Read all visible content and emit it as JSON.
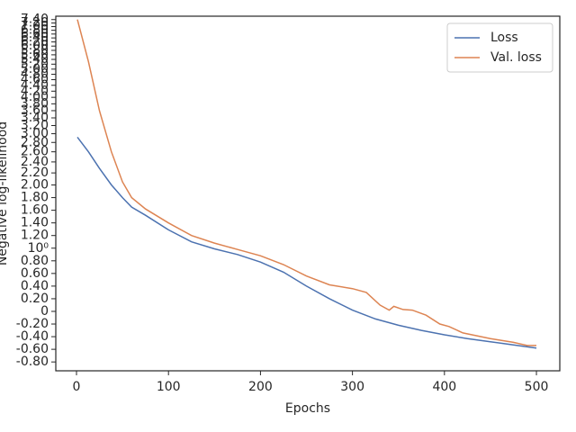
{
  "chart_data": {
    "type": "line",
    "xlabel": "Epochs",
    "ylabel": "Negative log-likelihood",
    "yscale": "linear-then-log",
    "ylinthresh": 2,
    "xlim": [
      -22.5,
      525.4
    ],
    "xticks": [
      0,
      100,
      200,
      300,
      400,
      500
    ],
    "ylim": [
      -0.94,
      7.6
    ],
    "yticks": [
      {
        "value": -0.8,
        "label": "-0.80"
      },
      {
        "value": -0.6,
        "label": "-0.60"
      },
      {
        "value": -0.4,
        "label": "-0.40"
      },
      {
        "value": -0.2,
        "label": "-0.20"
      },
      0,
      {
        "value": 0.2,
        "label": "0.20"
      },
      {
        "value": 0.4,
        "label": "0.40"
      },
      {
        "value": 0.6,
        "label": "0.60"
      },
      {
        "value": 0.8,
        "label": "0.80"
      },
      {
        "value": 1,
        "label": "10⁰"
      },
      {
        "value": 1.2,
        "label": "1.20"
      },
      {
        "value": 1.4,
        "label": "1.40"
      },
      {
        "value": 1.6,
        "label": "1.60"
      },
      {
        "value": 1.8,
        "label": "1.80"
      },
      {
        "value": 2,
        "label": "2.00"
      },
      {
        "value": 2.2,
        "label": "2.20"
      },
      {
        "value": 2.4,
        "label": "2.40"
      },
      {
        "value": 2.6,
        "label": "2.60"
      },
      {
        "value": 2.8,
        "label": "2.80"
      },
      {
        "value": 3,
        "label": "3.00"
      },
      {
        "value": 3.2,
        "label": "3.20"
      },
      {
        "value": 3.4,
        "label": "3.40"
      },
      {
        "value": 3.6,
        "label": "3.60"
      },
      {
        "value": 3.8,
        "label": "3.80"
      },
      {
        "value": 4,
        "label": "4.00"
      },
      {
        "value": 4.2,
        "label": "4.20"
      },
      {
        "value": 4.4,
        "label": "4.40"
      },
      {
        "value": 4.6,
        "label": "4.60"
      },
      {
        "value": 4.8,
        "label": "4.80"
      },
      {
        "value": 5,
        "label": "5.00"
      },
      {
        "value": 5.2,
        "label": "5.20"
      },
      {
        "value": 5.4,
        "label": "5.40"
      },
      {
        "value": 5.6,
        "label": "5.60"
      },
      {
        "value": 5.8,
        "label": "5.80"
      },
      {
        "value": 6,
        "label": "6.00"
      },
      {
        "value": 6.2,
        "label": "6.20"
      },
      {
        "value": 6.4,
        "label": "6.40"
      },
      {
        "value": 6.6,
        "label": "6.60"
      },
      {
        "value": 6.8,
        "label": "6.80"
      },
      {
        "value": 7,
        "label": "7.00"
      },
      {
        "value": 7.2,
        "label": "7.20"
      },
      {
        "value": 7.4,
        "label": "7.40"
      }
    ],
    "legend": "upper right",
    "series": [
      {
        "name": "Loss",
        "color": "#4c72b0",
        "x": [
          1,
          13,
          25,
          38,
          50,
          60,
          75,
          100,
          125,
          150,
          175,
          200,
          225,
          250,
          275,
          300,
          325,
          350,
          375,
          400,
          425,
          450,
          475,
          500
        ],
        "values": [
          2.92,
          2.6,
          2.28,
          2.0,
          1.8,
          1.65,
          1.52,
          1.29,
          1.1,
          0.99,
          0.9,
          0.78,
          0.62,
          0.4,
          0.2,
          0.02,
          -0.12,
          -0.22,
          -0.3,
          -0.37,
          -0.43,
          -0.48,
          -0.53,
          -0.58
        ]
      },
      {
        "name": "Val. loss",
        "color": "#dd8452",
        "x": [
          1,
          13,
          25,
          38,
          50,
          60,
          75,
          100,
          125,
          150,
          175,
          200,
          225,
          250,
          275,
          300,
          315,
          330,
          340,
          345,
          355,
          365,
          380,
          395,
          405,
          420,
          450,
          475,
          490,
          500
        ],
        "values": [
          7.4,
          5.3,
          3.6,
          2.6,
          2.05,
          1.8,
          1.62,
          1.4,
          1.2,
          1.08,
          0.98,
          0.88,
          0.74,
          0.56,
          0.42,
          0.36,
          0.3,
          0.1,
          0.02,
          0.08,
          0.03,
          0.02,
          -0.06,
          -0.2,
          -0.24,
          -0.34,
          -0.43,
          -0.49,
          -0.54,
          -0.54
        ]
      }
    ]
  }
}
